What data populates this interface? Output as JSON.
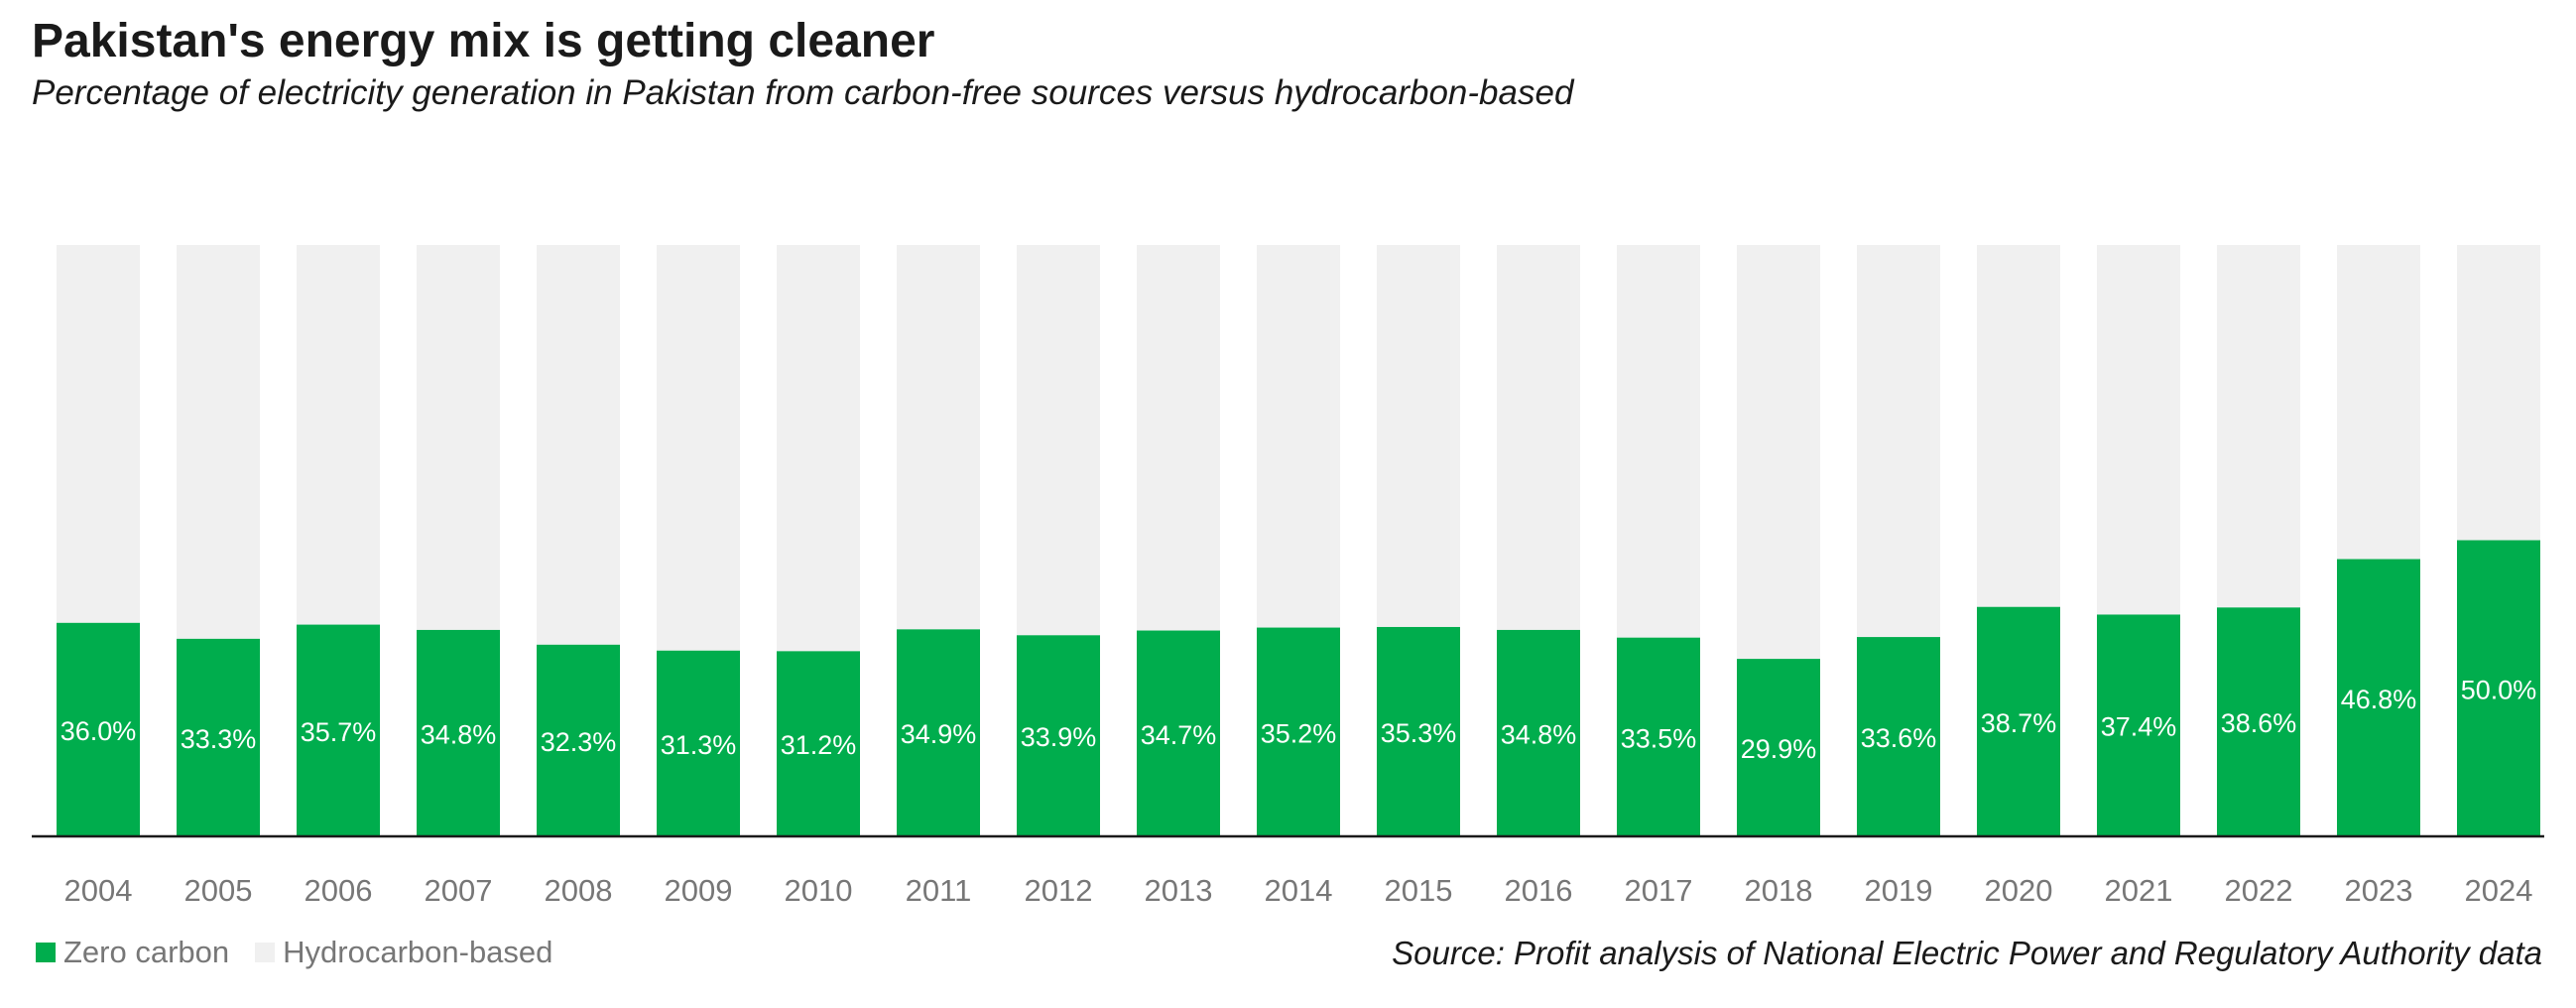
{
  "colors": {
    "zero_carbon": "#00ad4d",
    "hydrocarbon": "#f0f0f0",
    "axis": "#1a1a1a",
    "tick_text": "#777777",
    "label_text": "#ffffff"
  },
  "chart_data": {
    "type": "bar",
    "stacked": true,
    "title": "Pakistan's energy mix is getting cleaner",
    "subtitle": "Percentage of electricity generation in Pakistan from carbon-free sources versus hydrocarbon-based",
    "categories": [
      "2004",
      "2005",
      "2006",
      "2007",
      "2008",
      "2009",
      "2010",
      "2011",
      "2012",
      "2013",
      "2014",
      "2015",
      "2016",
      "2017",
      "2018",
      "2019",
      "2020",
      "2021",
      "2022",
      "2023",
      "2024"
    ],
    "series": [
      {
        "name": "Zero carbon",
        "values": [
          36.0,
          33.3,
          35.7,
          34.8,
          32.3,
          31.3,
          31.2,
          34.9,
          33.9,
          34.7,
          35.2,
          35.3,
          34.8,
          33.5,
          29.9,
          33.6,
          38.7,
          37.4,
          38.6,
          46.8,
          50.0
        ]
      },
      {
        "name": "Hydrocarbon-based",
        "values": [
          64.0,
          66.7,
          64.3,
          65.2,
          67.7,
          68.7,
          68.8,
          65.1,
          66.1,
          65.3,
          64.8,
          64.7,
          65.2,
          66.5,
          70.1,
          66.4,
          61.3,
          62.6,
          61.4,
          53.2,
          50.0
        ]
      }
    ],
    "data_labels": [
      "36.0%",
      "33.3%",
      "35.7%",
      "34.8%",
      "32.3%",
      "31.3%",
      "31.2%",
      "34.9%",
      "33.9%",
      "34.7%",
      "35.2%",
      "35.3%",
      "34.8%",
      "33.5%",
      "29.9%",
      "33.6%",
      "38.7%",
      "37.4%",
      "38.6%",
      "46.8%",
      "50.0%"
    ],
    "ylim": [
      0,
      100
    ],
    "grid": false,
    "legend_position": "bottom-left",
    "source": "Source: Profit analysis of National Electric Power and Regulatory Authority data"
  }
}
